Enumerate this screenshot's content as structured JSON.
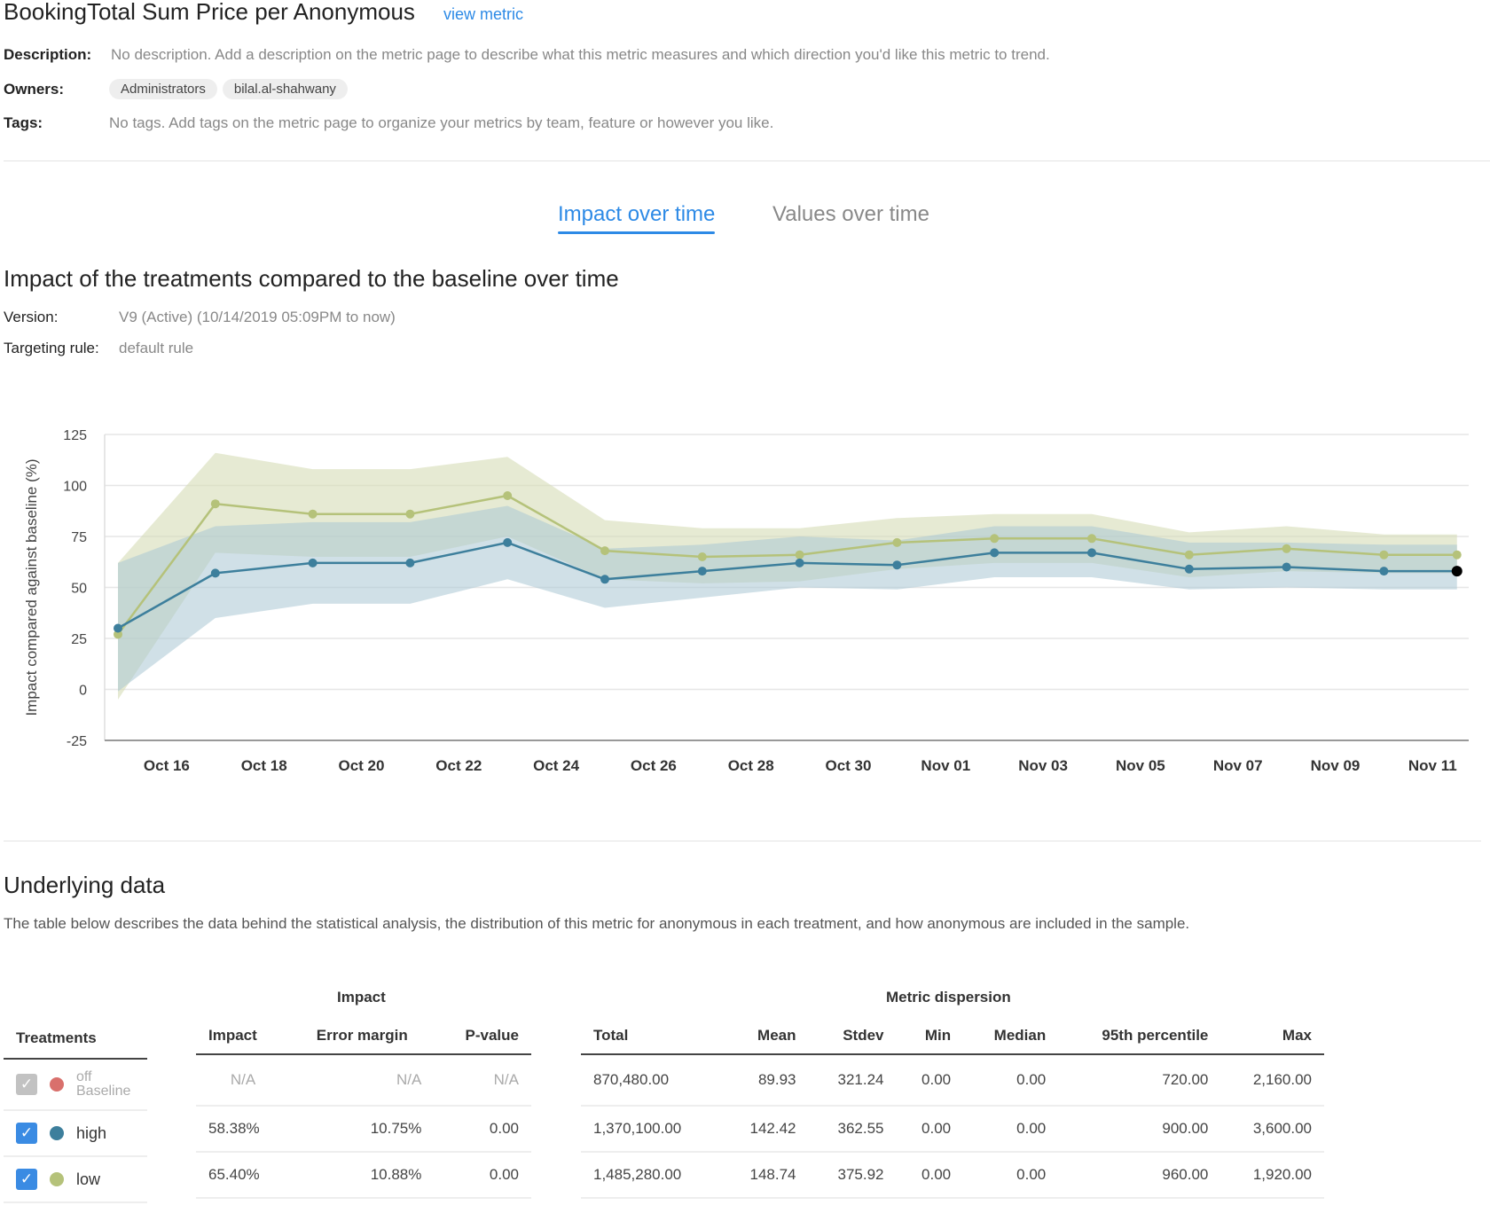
{
  "header": {
    "title": "BookingTotal Sum Price per Anonymous",
    "view_metric": "view metric"
  },
  "meta": {
    "description_label": "Description:",
    "description": "No description. Add a description on the metric page to describe what this metric measures and which direction you'd like this metric to trend.",
    "owners_label": "Owners:",
    "owners": [
      "Administrators",
      "bilal.al-shahwany"
    ],
    "tags_label": "Tags:",
    "tags": "No tags. Add tags on the metric page to organize your metrics by team, feature or however you like."
  },
  "tabs": [
    {
      "label": "Impact over time",
      "active": true
    },
    {
      "label": "Values over time",
      "active": false
    }
  ],
  "impact_section": {
    "title": "Impact of the treatments compared to the baseline over time",
    "version_label": "Version:",
    "version": "V9 (Active) (10/14/2019 05:09PM to now)",
    "targeting_label": "Targeting rule:",
    "targeting": "default rule"
  },
  "colors": {
    "accent": "#2d8ae6",
    "high": "#3d7f9c",
    "low": "#b5c27a",
    "off": "#d9706c",
    "checkbox": "#3a8be3",
    "checkbox_disabled": "#c2c2c2"
  },
  "chart_data": {
    "type": "line",
    "ylabel": "Impact compared against baseline (%)",
    "xlabel": "",
    "ylim": [
      -25,
      125
    ],
    "yticks": [
      125,
      100,
      75,
      50,
      25,
      0,
      -25
    ],
    "xticks": [
      "Oct 16",
      "Oct 18",
      "Oct 20",
      "Oct 22",
      "Oct 24",
      "Oct 26",
      "Oct 28",
      "Oct 30",
      "Nov 01",
      "Nov 03",
      "Nov 05",
      "Nov 07",
      "Nov 09",
      "Nov 11"
    ],
    "grid": true,
    "x": [
      "2019-10-15",
      "2019-10-17",
      "2019-10-19",
      "2019-10-21",
      "2019-10-23",
      "2019-10-25",
      "2019-10-27",
      "2019-10-29",
      "2019-10-31",
      "2019-11-02",
      "2019-11-04",
      "2019-11-06",
      "2019-11-08",
      "2019-11-10",
      "2019-11-11T12:00"
    ],
    "series": [
      {
        "name": "high",
        "color": "#3d7f9c",
        "band_color": "#a9c6d4",
        "values": [
          30,
          57,
          62,
          62,
          72,
          54,
          58,
          62,
          61,
          67,
          67,
          59,
          60,
          58,
          58
        ],
        "upper": [
          62,
          80,
          82,
          82,
          90,
          69,
          71,
          75,
          73,
          80,
          80,
          72,
          72,
          71,
          71
        ],
        "lower": [
          -1,
          35,
          42,
          42,
          54,
          40,
          45,
          50,
          49,
          55,
          55,
          49,
          50,
          49,
          49
        ]
      },
      {
        "name": "low",
        "color": "#b5c27a",
        "band_color": "#d6dcb5",
        "values": [
          27,
          91,
          86,
          86,
          95,
          68,
          65,
          66,
          72,
          74,
          74,
          66,
          69,
          66,
          66
        ],
        "upper": [
          62,
          116,
          108,
          108,
          114,
          83,
          79,
          79,
          84,
          86,
          86,
          77,
          80,
          76,
          76
        ],
        "lower": [
          -5,
          67,
          65,
          65,
          75,
          54,
          52,
          53,
          59,
          62,
          62,
          55,
          58,
          57,
          57
        ]
      }
    ]
  },
  "underlying": {
    "title": "Underlying data",
    "description": "The table below describes the data behind the statistical analysis, the distribution of this metric for anonymous in each treatment, and how anonymous are included in the sample.",
    "group_impact": "Impact",
    "group_dispersion": "Metric dispersion",
    "col_treatments": "Treatments",
    "impact_cols": [
      "Impact",
      "Error margin",
      "P-value"
    ],
    "dispersion_cols": [
      "Total",
      "Mean",
      "Stdev",
      "Min",
      "Median",
      "95th percentile",
      "Max"
    ],
    "rows": [
      {
        "name": "off",
        "sub": "Baseline",
        "checked": true,
        "disabled": true,
        "impact": [
          "N/A",
          "N/A",
          "N/A"
        ],
        "dispersion": [
          "870,480.00",
          "89.93",
          "321.24",
          "0.00",
          "0.00",
          "720.00",
          "2,160.00"
        ]
      },
      {
        "name": "high",
        "sub": "",
        "checked": true,
        "disabled": false,
        "impact": [
          "58.38%",
          "10.75%",
          "0.00"
        ],
        "dispersion": [
          "1,370,100.00",
          "142.42",
          "362.55",
          "0.00",
          "0.00",
          "900.00",
          "3,600.00"
        ]
      },
      {
        "name": "low",
        "sub": "",
        "checked": true,
        "disabled": false,
        "impact": [
          "65.40%",
          "10.88%",
          "0.00"
        ],
        "dispersion": [
          "1,485,280.00",
          "148.74",
          "375.92",
          "0.00",
          "0.00",
          "960.00",
          "1,920.00"
        ]
      }
    ],
    "checkmark": "✓"
  }
}
